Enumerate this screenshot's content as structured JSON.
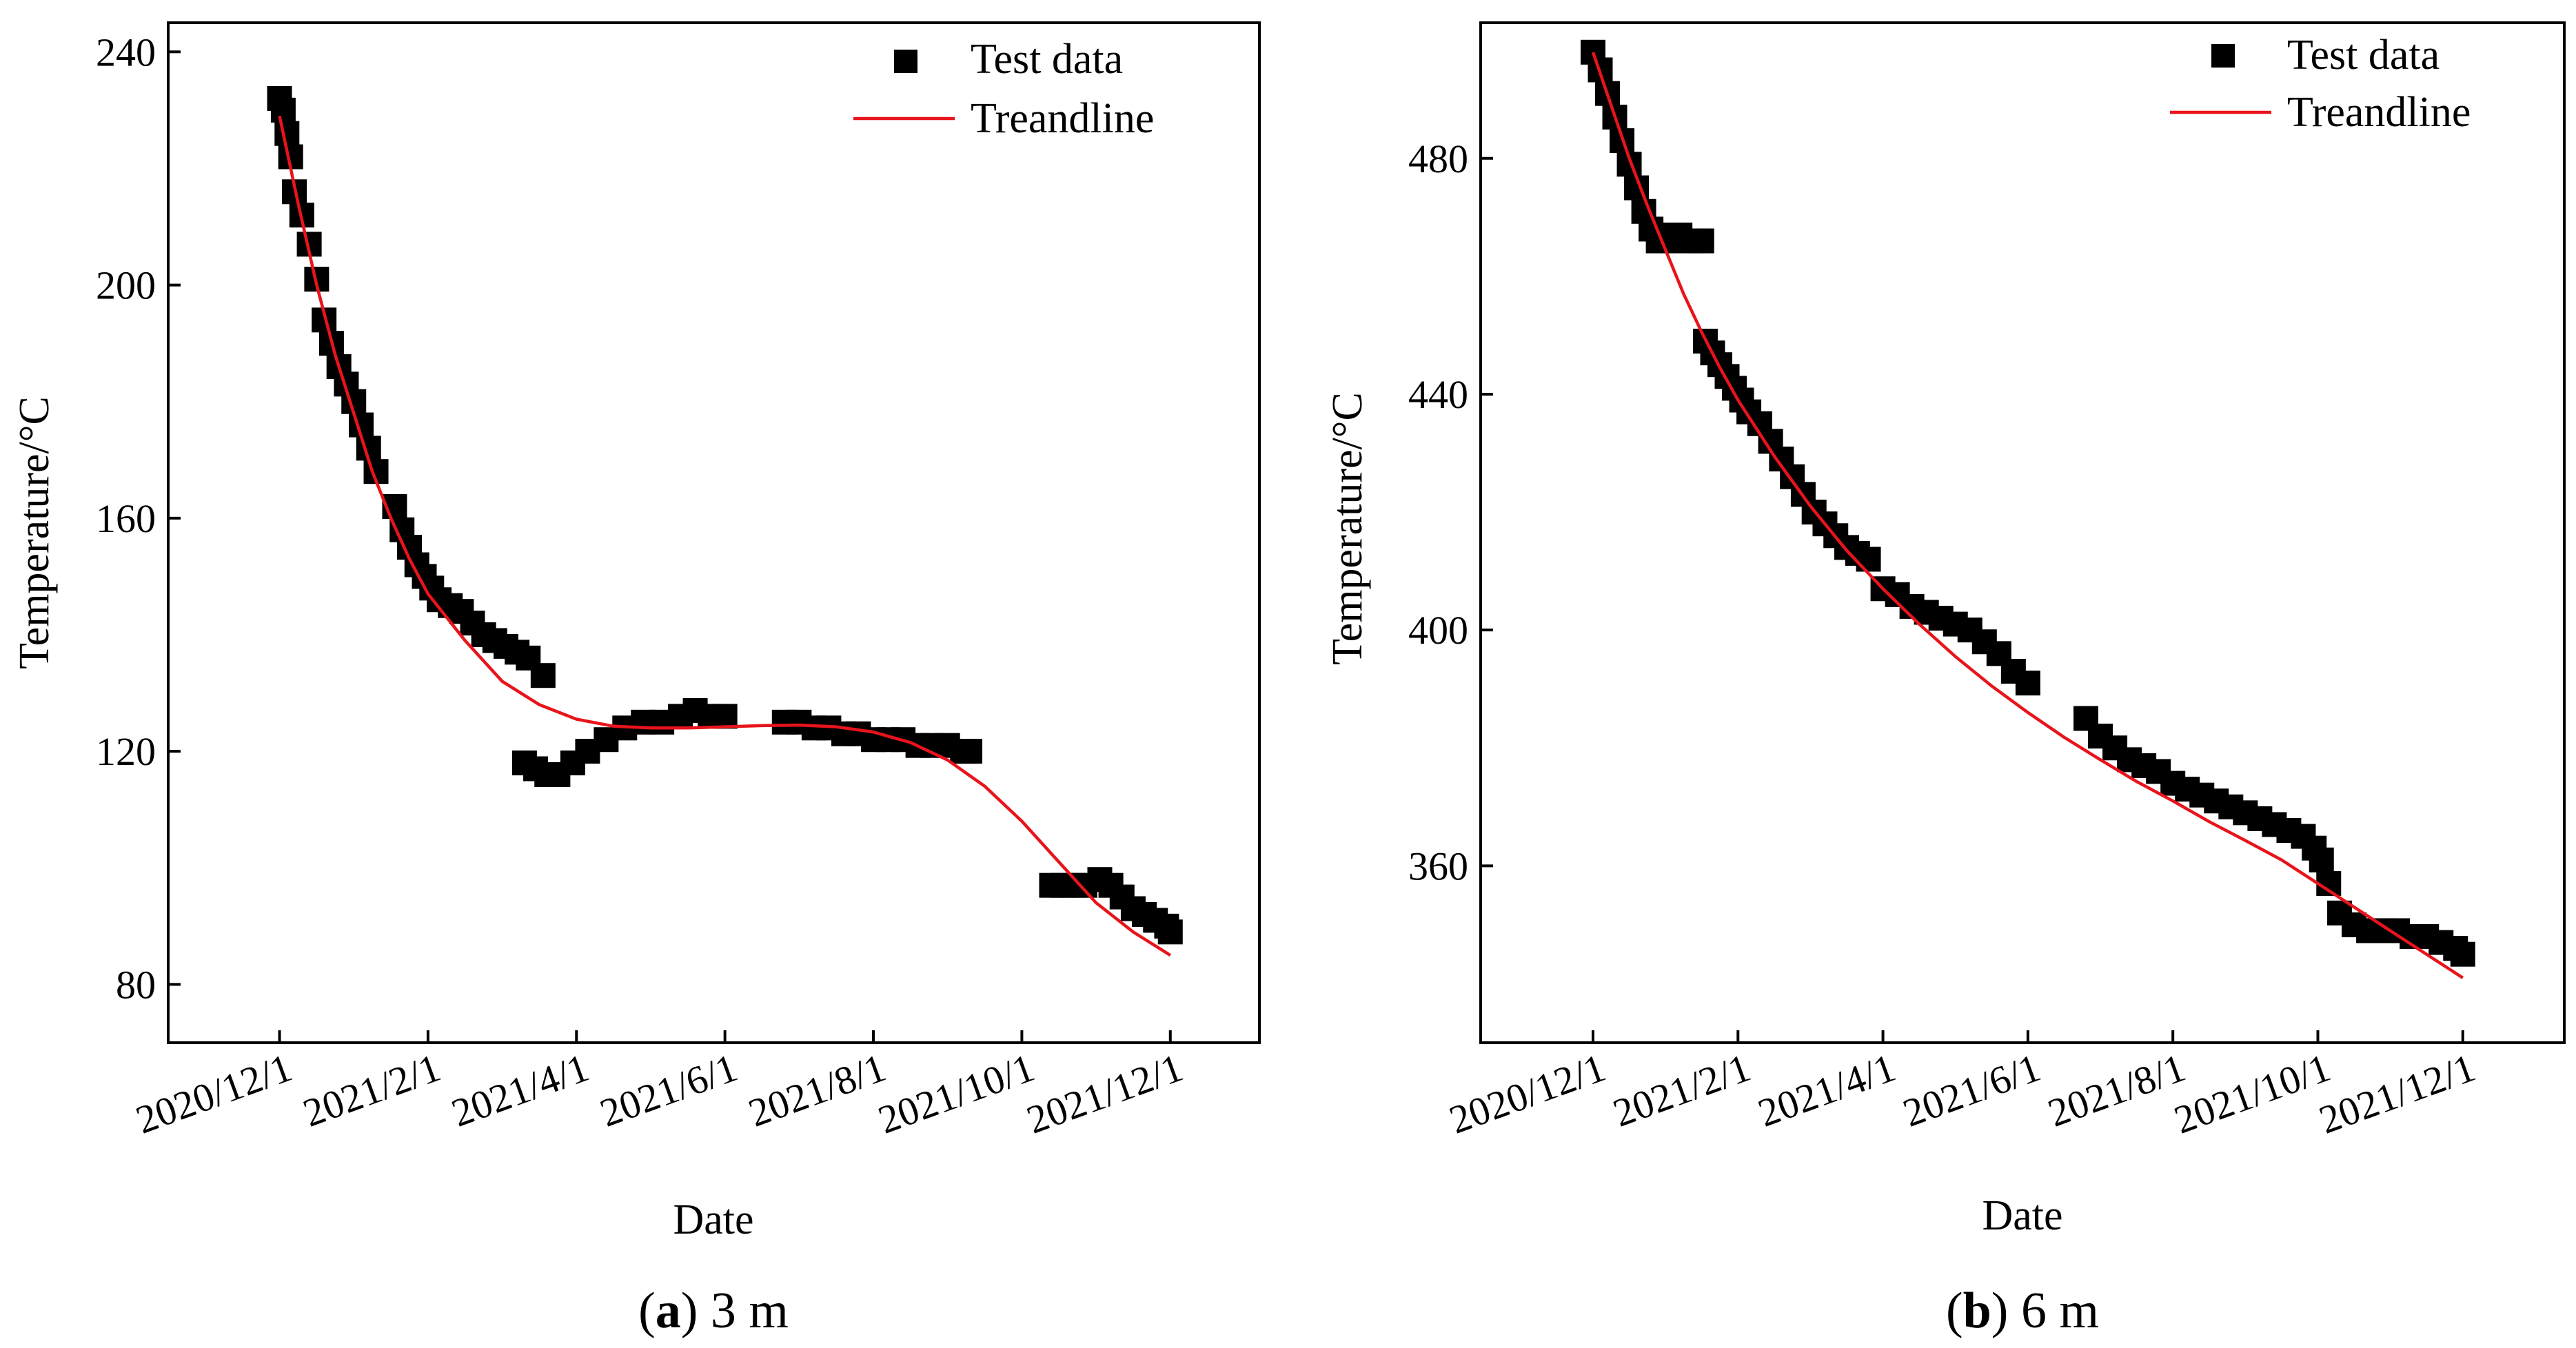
{
  "colors": {
    "points": "#000000",
    "trend": "#e8141b",
    "axes": "#000000"
  },
  "chart_data": [
    {
      "id": "a",
      "type": "scatter",
      "caption_letter": "a",
      "caption_rest": " 3 m",
      "xlabel": "Date",
      "ylabel": "Temperature/°C",
      "xlim": [
        -1.5,
        13.2
      ],
      "ylim": [
        70,
        245
      ],
      "xticks": [
        0,
        2,
        4,
        6,
        8,
        10,
        12
      ],
      "xtick_labels": [
        "2020/12/1",
        "2021/2/1",
        "2021/4/1",
        "2021/6/1",
        "2021/8/1",
        "2021/10/1",
        "2021/12/1"
      ],
      "yticks": [
        80,
        120,
        160,
        200,
        240
      ],
      "ytick_labels": [
        "80",
        "120",
        "160",
        "200",
        "240"
      ],
      "legend": {
        "points_label": "Test data",
        "line_label": "Treandline",
        "position": "top-right"
      },
      "series": [
        {
          "name": "Test data",
          "x": [
            0.0,
            0.05,
            0.1,
            0.15,
            0.2,
            0.3,
            0.4,
            0.5,
            0.6,
            0.7,
            0.8,
            0.9,
            1.0,
            1.1,
            1.2,
            1.3,
            1.55,
            1.65,
            1.75,
            1.85,
            1.95,
            2.05,
            2.15,
            2.3,
            2.45,
            2.6,
            2.75,
            2.9,
            3.05,
            3.2,
            3.35,
            3.55,
            3.3,
            3.45,
            3.6,
            3.75,
            3.95,
            4.15,
            4.4,
            4.65,
            4.9,
            5.15,
            5.4,
            5.6,
            5.8,
            6.0,
            6.8,
            7.0,
            7.2,
            7.4,
            7.6,
            7.8,
            8.0,
            8.2,
            8.4,
            8.6,
            8.8,
            9.0,
            9.2,
            9.3,
            10.4,
            10.55,
            10.7,
            10.85,
            11.05,
            11.2,
            11.35,
            11.5,
            11.65,
            11.8,
            11.95,
            12.0
          ],
          "y": [
            232,
            230,
            226,
            222,
            216,
            212,
            207,
            201,
            194,
            190,
            186,
            183,
            180,
            176,
            172,
            168,
            162,
            158,
            155,
            152,
            150,
            148,
            146,
            145,
            144,
            142,
            140,
            139,
            138,
            137,
            136,
            133,
            118,
            117,
            116,
            116,
            118,
            120,
            122,
            124,
            125,
            125,
            126,
            127,
            126,
            126,
            125,
            125,
            124,
            124,
            123,
            123,
            122,
            122,
            122,
            121,
            121,
            121,
            120,
            120,
            97,
            97,
            97,
            97,
            98,
            97,
            95,
            93,
            92,
            91,
            90,
            89
          ]
        },
        {
          "name": "Treandline",
          "x": [
            0.0,
            0.25,
            0.5,
            0.75,
            1.0,
            1.25,
            1.5,
            1.75,
            2.0,
            2.5,
            3.0,
            3.5,
            4.0,
            4.5,
            5.0,
            5.5,
            6.0,
            6.5,
            7.0,
            7.5,
            8.0,
            8.5,
            9.0,
            9.5,
            10.0,
            10.5,
            11.0,
            11.5,
            12.0
          ],
          "y": [
            229.0,
            214.0,
            200.0,
            188.0,
            178.0,
            168.0,
            160.0,
            153.0,
            147.0,
            139.0,
            132.0,
            128.0,
            125.5,
            124.3,
            124.0,
            124.0,
            124.2,
            124.4,
            124.5,
            124.2,
            123.3,
            121.5,
            118.5,
            114.0,
            108.0,
            101.0,
            94.0,
            89.0,
            85.0
          ]
        }
      ]
    },
    {
      "id": "b",
      "type": "scatter",
      "caption_letter": "b",
      "caption_rest": " 6 m",
      "xlabel": "Date",
      "ylabel": "Temperature/°C",
      "xlim": [
        -1.55,
        13.4
      ],
      "ylim": [
        330,
        503
      ],
      "xticks": [
        0,
        2,
        4,
        6,
        8,
        10,
        12
      ],
      "xtick_labels": [
        "2020/12/1",
        "2021/2/1",
        "2021/4/1",
        "2021/6/1",
        "2021/8/1",
        "2021/10/1",
        "2021/12/1"
      ],
      "yticks": [
        360,
        400,
        440,
        480
      ],
      "ytick_labels": [
        "360",
        "400",
        "440",
        "480"
      ],
      "legend": {
        "points_label": "Test data",
        "line_label": "Treandline",
        "position": "top-right"
      },
      "series": [
        {
          "name": "Test data",
          "x": [
            0.0,
            0.1,
            0.2,
            0.3,
            0.4,
            0.5,
            0.6,
            0.7,
            0.8,
            0.9,
            1.0,
            1.1,
            1.2,
            1.3,
            1.4,
            1.5,
            1.55,
            1.65,
            1.75,
            1.85,
            1.95,
            2.05,
            2.15,
            2.3,
            2.45,
            2.6,
            2.75,
            2.9,
            3.05,
            3.2,
            3.35,
            3.5,
            3.65,
            3.8,
            4.0,
            4.2,
            4.4,
            4.6,
            4.8,
            5.0,
            5.2,
            5.4,
            5.6,
            5.8,
            6.0,
            6.8,
            7.0,
            7.2,
            7.4,
            7.6,
            7.8,
            8.0,
            8.2,
            8.4,
            8.6,
            8.8,
            9.0,
            9.2,
            9.4,
            9.6,
            9.8,
            9.95,
            10.05,
            10.15,
            10.3,
            10.5,
            10.7,
            10.9,
            11.1,
            11.3,
            11.5,
            11.7,
            11.9,
            12.0
          ],
          "y": [
            498,
            495,
            491,
            487,
            483,
            479,
            475,
            471,
            468,
            466,
            466,
            467,
            467,
            466,
            466,
            466,
            449,
            447,
            445,
            443,
            441,
            439,
            437,
            435,
            432,
            429,
            426,
            423,
            420,
            418,
            416,
            414,
            413,
            412,
            407,
            406,
            404,
            403,
            402,
            401,
            400,
            398,
            396,
            393,
            391,
            385,
            382,
            380,
            378,
            377,
            376,
            374,
            373,
            372,
            371,
            370,
            369,
            368,
            367,
            366,
            365,
            363,
            361,
            357,
            352,
            350,
            349,
            349,
            349,
            348,
            348,
            347,
            346,
            345
          ]
        },
        {
          "name": "Treandline",
          "x": [
            0.0,
            0.25,
            0.5,
            0.75,
            1.0,
            1.25,
            1.5,
            1.75,
            2.0,
            2.5,
            3.0,
            3.5,
            4.0,
            4.5,
            5.0,
            5.5,
            6.0,
            6.5,
            7.0,
            7.5,
            8.0,
            8.5,
            9.0,
            9.5,
            10.0,
            10.5,
            11.0,
            11.5,
            12.0
          ],
          "y": [
            498.0,
            489.0,
            480.0,
            472.0,
            464.5,
            457.0,
            450.5,
            444.5,
            439.0,
            429.5,
            421.0,
            413.5,
            407.0,
            401.0,
            395.5,
            390.5,
            386.0,
            381.8,
            378.0,
            374.3,
            371.0,
            367.5,
            364.3,
            361.0,
            357.0,
            353.0,
            349.0,
            345.0,
            341.0
          ]
        }
      ]
    }
  ]
}
